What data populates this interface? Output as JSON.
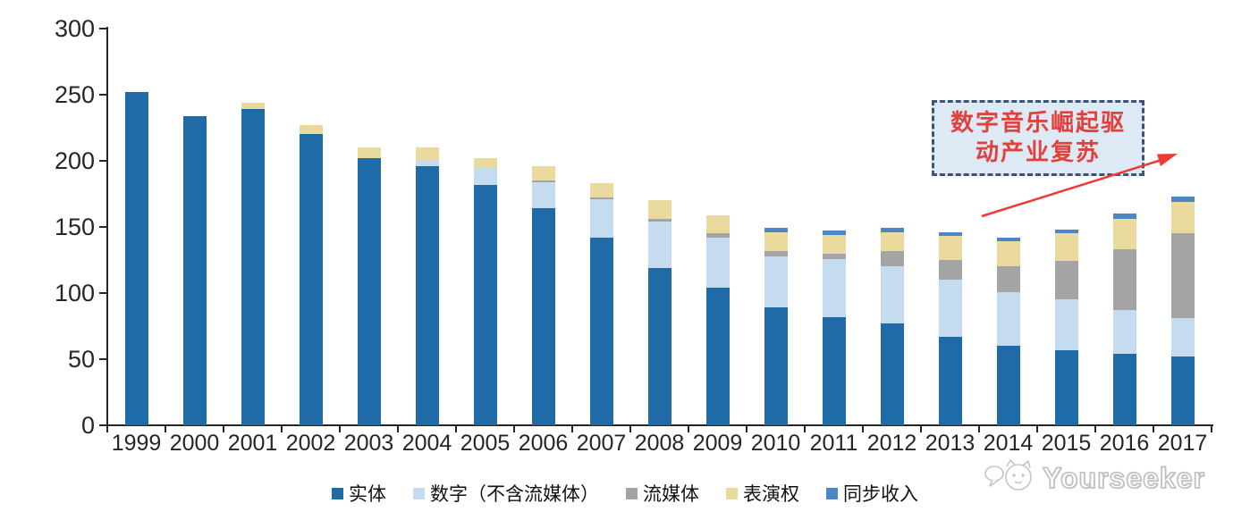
{
  "chart_data": {
    "type": "bar",
    "stacked": true,
    "title": "",
    "xlabel": "",
    "ylabel": "",
    "categories": [
      "1999",
      "2000",
      "2001",
      "2002",
      "2003",
      "2004",
      "2005",
      "2006",
      "2007",
      "2008",
      "2009",
      "2010",
      "2011",
      "2012",
      "2013",
      "2014",
      "2015",
      "2016",
      "2017"
    ],
    "series": [
      {
        "name": "实体",
        "color": "#1F6BA7",
        "values": [
          252,
          234,
          239,
          220,
          202,
          196,
          182,
          164,
          142,
          119,
          104,
          89,
          82,
          77,
          67,
          60,
          57,
          54,
          52
        ]
      },
      {
        "name": "数字（不含流媒体）",
        "color": "#C5DBEF",
        "values": [
          0,
          0,
          0,
          0,
          0,
          4,
          13,
          20,
          29,
          35,
          38,
          39,
          44,
          43,
          43,
          41,
          38,
          33,
          29
        ]
      },
      {
        "name": "流媒体",
        "color": "#A5A4A4",
        "values": [
          0,
          0,
          0,
          0,
          0,
          0,
          0,
          1,
          1,
          2,
          3,
          4,
          4,
          12,
          15,
          19,
          29,
          46,
          64
        ]
      },
      {
        "name": "表演权",
        "color": "#EBDA9D",
        "values": [
          0,
          0,
          5,
          7,
          8,
          10,
          7,
          11,
          11,
          14,
          14,
          14,
          14,
          14,
          18,
          19,
          21,
          23,
          24
        ]
      },
      {
        "name": "同步收入",
        "color": "#4C86C4",
        "values": [
          0,
          0,
          0,
          0,
          0,
          0,
          0,
          0,
          0,
          0,
          0,
          3,
          3,
          3,
          3,
          3,
          3,
          4,
          4
        ]
      }
    ],
    "ylim": [
      0,
      300
    ],
    "yticks": [
      0,
      50,
      100,
      150,
      200,
      250,
      300
    ],
    "grid": false,
    "legend_position": "bottom"
  },
  "annotation": {
    "line1": "数字音乐崛起驱",
    "line2": "动产业复苏",
    "arrow_color": "#EC3B34"
  },
  "watermark": {
    "text": "Yourseeker"
  },
  "colors": {
    "axis": "#262626",
    "annotation_border": "#3D5573",
    "annotation_fill": "#DEE9F6",
    "annotation_text": "#E0413C"
  }
}
